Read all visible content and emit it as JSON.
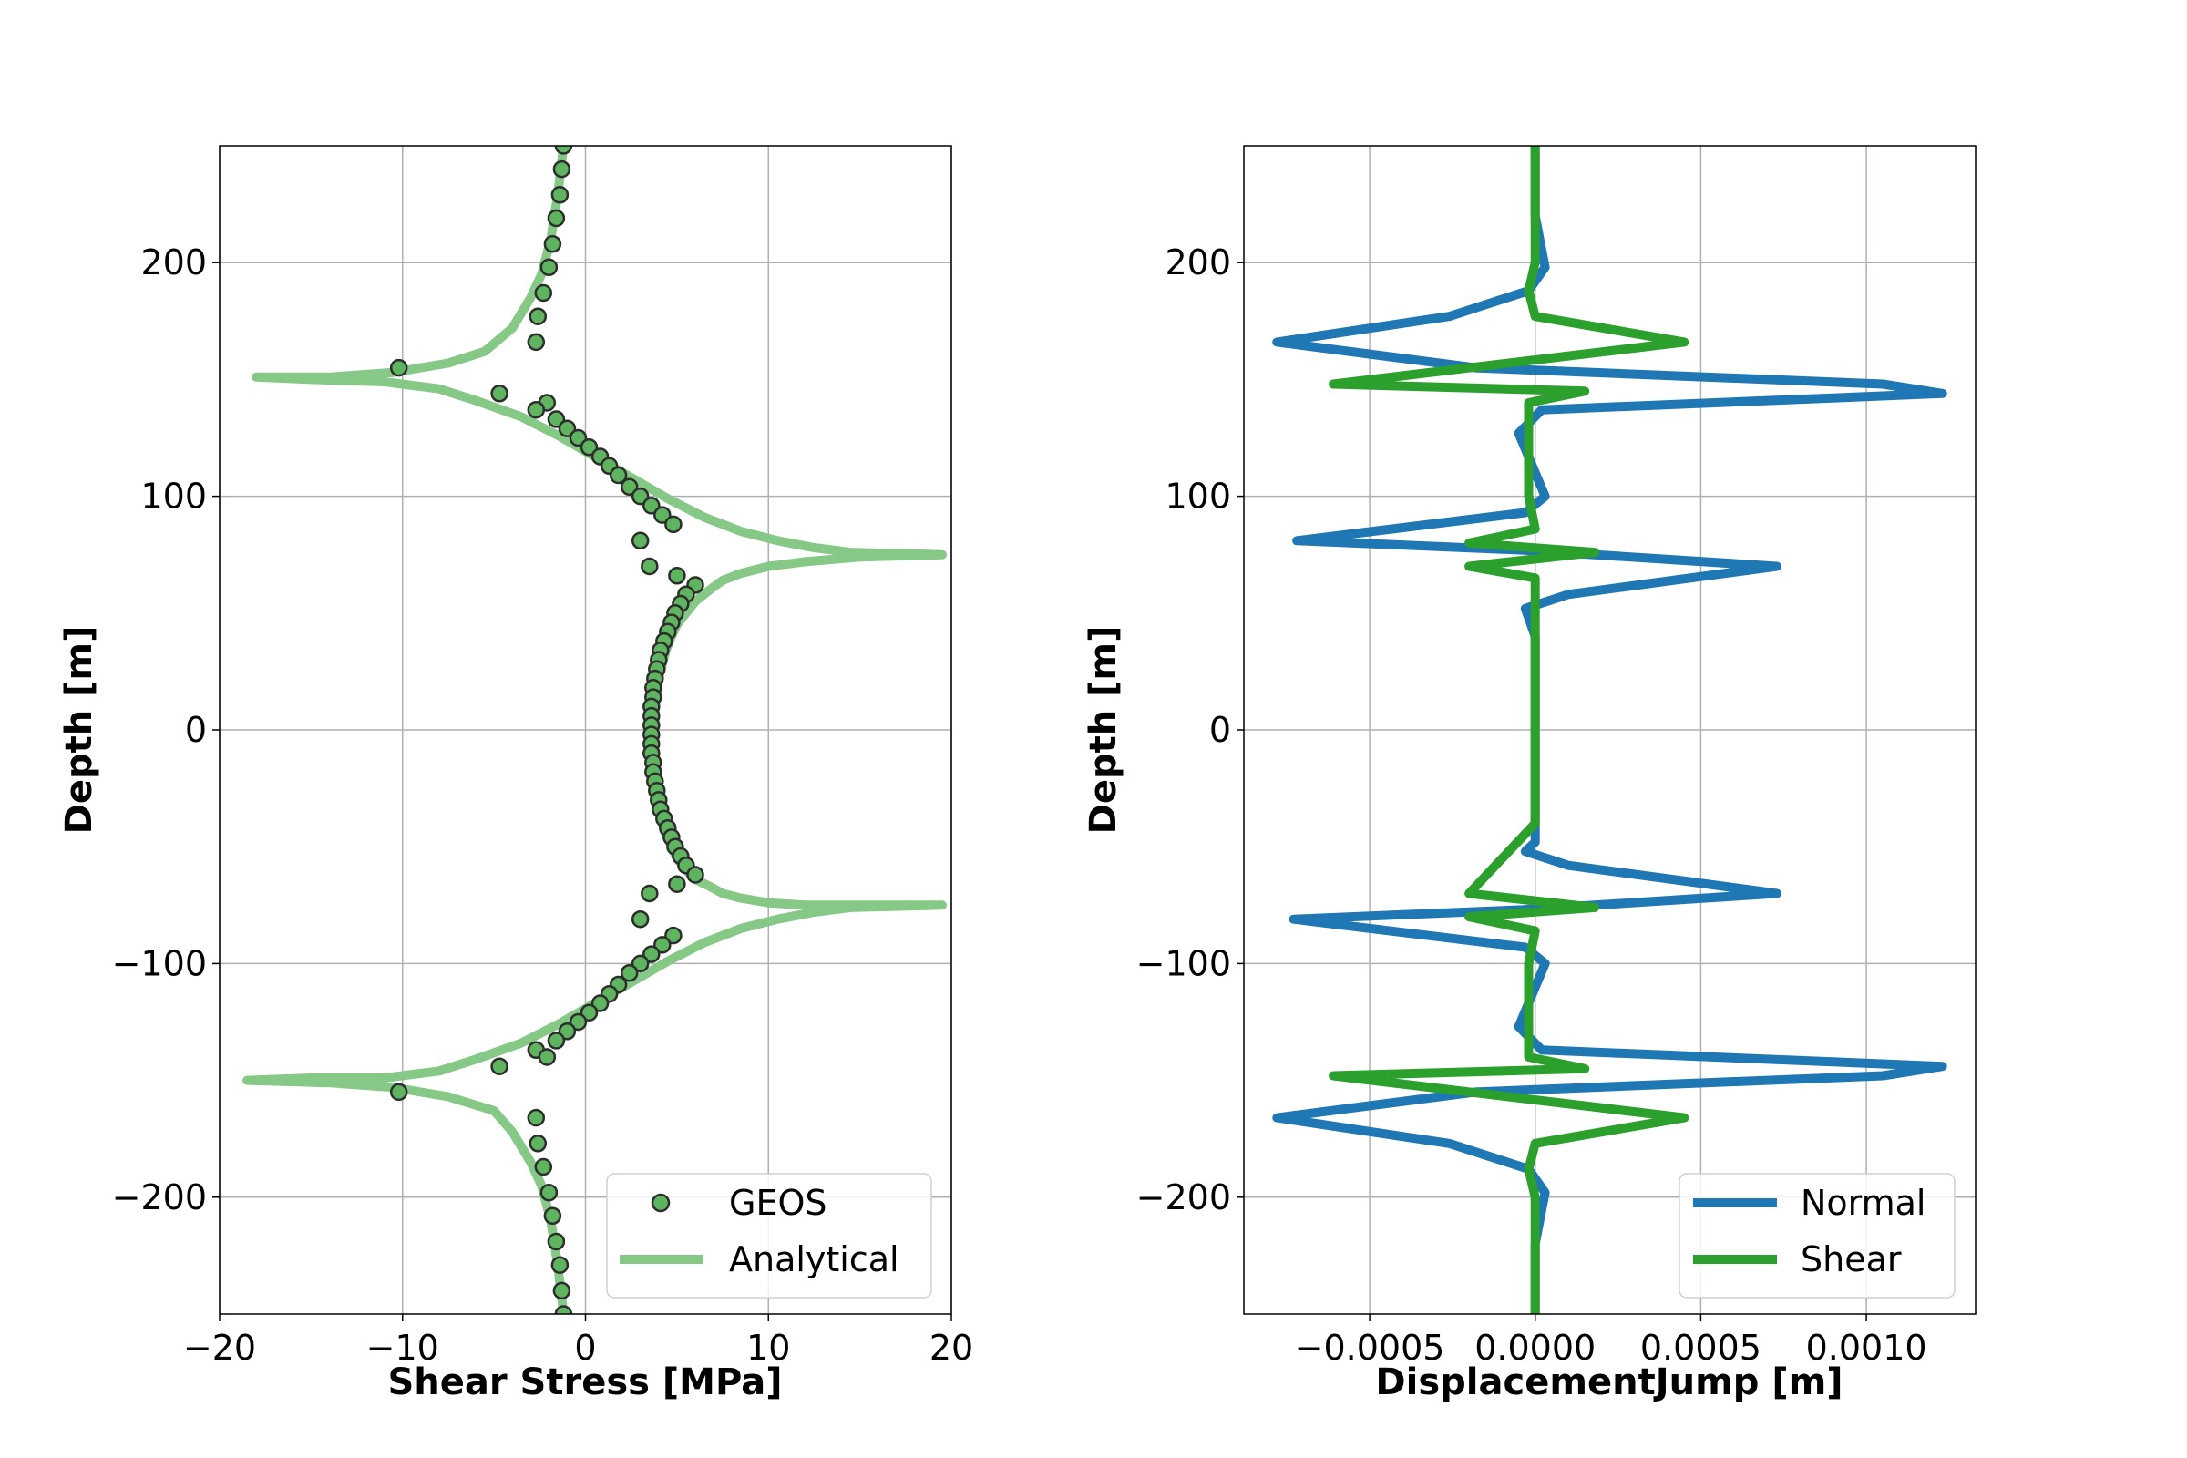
{
  "colors": {
    "analytical": "#86c986",
    "geos_fill": "#5fb55f",
    "geos_edge": "#2d2d2d",
    "normal": "#1f77b4",
    "shear": "#2ca02c",
    "grid": "#b0b0b0"
  },
  "chart_data": [
    {
      "type": "line",
      "xlabel": "Shear Stress [MPa]",
      "ylabel": "Depth [m]",
      "xlim": [
        -20,
        20
      ],
      "ylim": [
        -250,
        250
      ],
      "xticks": [
        -20,
        -10,
        0,
        10,
        20
      ],
      "yticks": [
        -200,
        -100,
        0,
        100,
        200
      ],
      "xtick_labels": [
        "−20",
        "−10",
        "0",
        "10",
        "20"
      ],
      "ytick_labels": [
        "−200",
        "−100",
        "0",
        "100",
        "200"
      ],
      "grid": true,
      "legend_position": "bottom-right",
      "series": [
        {
          "name": "GEOS",
          "style": "scatter",
          "x": [
            -1.2,
            -1.3,
            -1.4,
            -1.6,
            -1.8,
            -2.0,
            -2.3,
            -2.6,
            -2.7,
            -10.2,
            -4.7,
            -2.1,
            -2.7,
            -1.6,
            -1.0,
            -0.4,
            0.2,
            0.8,
            1.3,
            1.8,
            2.4,
            3.0,
            3.6,
            4.2,
            4.8,
            3.0,
            3.5,
            5.0,
            6.0,
            5.5,
            5.2,
            4.9,
            4.7,
            4.5,
            4.3,
            4.1,
            4.0,
            3.9,
            3.8,
            3.7,
            3.7,
            3.6,
            3.6,
            3.6,
            3.6,
            3.6,
            3.6,
            3.7,
            3.7,
            3.8,
            3.9,
            4.0,
            4.1,
            4.3,
            4.5,
            4.7,
            4.9,
            5.2,
            5.5,
            6.0,
            5.0,
            3.5,
            3.0,
            4.8,
            4.2,
            3.6,
            3.0,
            2.4,
            1.8,
            1.3,
            0.8,
            0.2,
            -0.4,
            -1.0,
            -1.6,
            -2.7,
            -2.1,
            -4.7,
            -10.2,
            -2.7,
            -2.6,
            -2.3,
            -2.0,
            -1.8,
            -1.6,
            -1.4,
            -1.3,
            -1.2
          ],
          "y": [
            250,
            240,
            229,
            219,
            208,
            198,
            187,
            177,
            166,
            155,
            144,
            140,
            137,
            133,
            129,
            125,
            121,
            117,
            113,
            109,
            104,
            100,
            96,
            92,
            88,
            81,
            70,
            66,
            62,
            58,
            54,
            50,
            46,
            42,
            38,
            34,
            30,
            26,
            22,
            18,
            14,
            10,
            6,
            2,
            -2,
            -6,
            -10,
            -14,
            -18,
            -22,
            -26,
            -30,
            -34,
            -38,
            -42,
            -46,
            -50,
            -54,
            -58,
            -62,
            -66,
            -70,
            -81,
            -88,
            -92,
            -96,
            -100,
            -104,
            -109,
            -113,
            -117,
            -121,
            -125,
            -129,
            -133,
            -137,
            -140,
            -144,
            -155,
            -166,
            -177,
            -187,
            -198,
            -208,
            -219,
            -229,
            -240,
            -250
          ]
        },
        {
          "name": "Analytical",
          "style": "line",
          "x": [
            -1.2,
            -1.5,
            -1.9,
            -2.4,
            -3.0,
            -4.0,
            -5.5,
            -7.5,
            -10.5,
            -14.0,
            -18.0,
            -15.0,
            -11.0,
            -8.0,
            -6.0,
            -3.5,
            -1.5,
            0.5,
            2.5,
            4.5,
            6.5,
            8.5,
            10.5,
            12.5,
            14.5,
            19.5,
            15.0,
            12.0,
            10.0,
            8.5,
            7.5,
            6.8,
            6.0,
            5.5,
            5.0,
            4.7,
            4.4,
            4.2,
            4.0,
            3.9,
            3.8,
            3.8,
            3.7,
            3.7,
            3.7,
            3.8,
            3.8,
            3.9,
            4.0,
            4.2,
            4.4,
            4.7,
            5.0,
            5.5,
            6.0,
            6.8,
            7.5,
            8.5,
            10.0,
            12.0,
            15.0,
            19.5,
            14.5,
            12.5,
            10.5,
            8.5,
            6.5,
            4.5,
            2.5,
            0.5,
            -1.5,
            -3.5,
            -6.0,
            -8.0,
            -11.0,
            -15.0,
            -18.5,
            -14.0,
            -10.5,
            -7.5,
            -5.0,
            -4.0,
            -3.0,
            -2.4,
            -1.9,
            -1.5,
            -1.2
          ],
          "y": [
            250,
            230,
            210,
            195,
            185,
            172,
            162,
            157,
            153,
            151,
            151,
            150,
            149,
            146,
            141,
            134,
            126,
            117,
            108,
            99,
            91,
            85,
            81,
            78,
            76,
            75,
            74,
            72,
            70,
            67,
            64,
            60,
            55,
            50,
            45,
            40,
            34,
            28,
            22,
            16,
            10,
            5,
            0,
            -5,
            -10,
            -16,
            -22,
            -28,
            -34,
            -40,
            -45,
            -50,
            -55,
            -60,
            -64,
            -67,
            -70,
            -72,
            -74,
            -75,
            -75,
            -75,
            -76,
            -78,
            -81,
            -85,
            -91,
            -99,
            -108,
            -117,
            -126,
            -134,
            -141,
            -146,
            -149,
            -149,
            -150,
            -151,
            -153,
            -157,
            -163,
            -172,
            -185,
            -195,
            -210,
            -230,
            -250
          ]
        }
      ]
    },
    {
      "type": "line",
      "xlabel": "DisplacementJump [m]",
      "ylabel": "Depth [m]",
      "xlim": [
        -0.00088,
        0.00133
      ],
      "ylim": [
        -250,
        250
      ],
      "xticks": [
        -0.0005,
        0.0,
        0.0005,
        0.001
      ],
      "yticks": [
        -200,
        -100,
        0,
        100,
        200
      ],
      "xtick_labels": [
        "−0.0005",
        "0.0000",
        "0.0005",
        "0.0010"
      ],
      "ytick_labels": [
        "−200",
        "−100",
        "0",
        "100",
        "200"
      ],
      "grid": true,
      "legend_position": "bottom-right",
      "series": [
        {
          "name": "Normal",
          "style": "line",
          "x": [
            0.0,
            0.0,
            3e-05,
            -2e-05,
            -0.00026,
            -0.00078,
            -0.00018,
            0.00105,
            0.00123,
            2e-05,
            -5e-05,
            3e-05,
            -3e-05,
            -0.00072,
            -4e-05,
            0.00073,
            0.0001,
            -3e-05,
            0.0,
            0.0,
            0.0,
            0.0,
            -3e-05,
            0.0001,
            0.00073,
            -4e-05,
            -0.00073,
            -3e-05,
            3e-05,
            -5e-05,
            2e-05,
            0.00123,
            0.00105,
            -0.00018,
            -0.00078,
            -0.00026,
            -2e-05,
            3e-05,
            0.0,
            0.0
          ],
          "y": [
            250,
            220,
            198,
            188,
            177,
            166,
            155,
            148,
            144,
            137,
            127,
            100,
            93,
            81,
            77,
            70,
            58,
            52,
            40,
            0,
            -40,
            -48,
            -52,
            -58,
            -70,
            -77,
            -81,
            -93,
            -100,
            -127,
            -137,
            -144,
            -148,
            -155,
            -166,
            -177,
            -188,
            -198,
            -220,
            -250
          ]
        },
        {
          "name": "Shear",
          "style": "line",
          "x": [
            0.0,
            0.0,
            -2e-05,
            0.0,
            0.00045,
            -0.00061,
            0.00015,
            -2e-05,
            -2e-05,
            0.0,
            -0.0002,
            0.00018,
            -0.0002,
            0.0,
            0.0,
            0.0,
            0.0,
            -0.0002,
            0.00018,
            -0.0002,
            0.0,
            -2e-05,
            -2e-05,
            0.00015,
            -0.00061,
            0.00045,
            0.0,
            -2e-05,
            0.0,
            0.0
          ],
          "y": [
            250,
            200,
            188,
            177,
            166,
            148,
            145,
            140,
            100,
            86,
            80,
            76,
            70,
            65,
            40,
            0,
            -40,
            -70,
            -76,
            -80,
            -86,
            -100,
            -140,
            -145,
            -148,
            -166,
            -177,
            -188,
            -200,
            -250
          ]
        }
      ]
    }
  ]
}
